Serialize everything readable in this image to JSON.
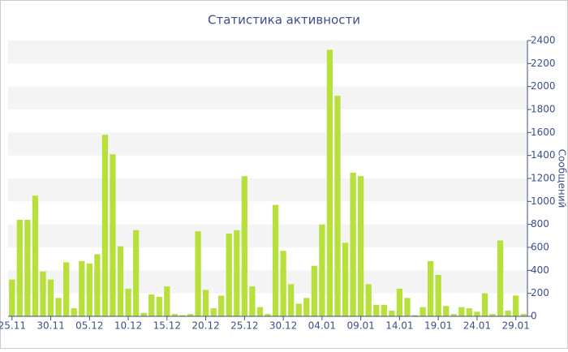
{
  "chart_data": {
    "type": "bar",
    "title": "Статистика активности",
    "y_label": "Сообщений",
    "categories": [
      "25.11",
      null,
      null,
      null,
      null,
      "30.11",
      null,
      null,
      null,
      null,
      "05.12",
      null,
      null,
      null,
      null,
      "10.12",
      null,
      null,
      null,
      null,
      "15.12",
      null,
      null,
      null,
      null,
      "20.12",
      null,
      null,
      null,
      null,
      "25.12",
      null,
      null,
      null,
      null,
      "30.12",
      null,
      null,
      null,
      null,
      "04.01",
      null,
      null,
      null,
      null,
      "09.01",
      null,
      null,
      null,
      null,
      "14.01",
      null,
      null,
      null,
      null,
      "19.01",
      null,
      null,
      null,
      null,
      "24.01",
      null,
      null,
      null,
      null,
      "29.01",
      null
    ],
    "values": [
      320,
      840,
      840,
      1050,
      390,
      320,
      160,
      470,
      70,
      480,
      460,
      540,
      1580,
      1410,
      610,
      240,
      750,
      30,
      190,
      170,
      260,
      20,
      10,
      20,
      740,
      230,
      70,
      180,
      720,
      750,
      1220,
      260,
      80,
      20,
      970,
      570,
      280,
      110,
      160,
      440,
      800,
      2320,
      1920,
      640,
      1250,
      1220,
      280,
      100,
      100,
      50,
      240,
      160,
      10,
      80,
      480,
      360,
      90,
      20,
      80,
      70,
      40,
      200,
      20,
      660,
      50,
      180,
      20
    ],
    "color": "#b8e03c",
    "ylim": [
      0,
      2400
    ],
    "yticks": [
      0,
      200,
      400,
      600,
      800,
      1000,
      1200,
      1400,
      1600,
      1800,
      2000,
      2200,
      2400
    ],
    "grid": true
  }
}
